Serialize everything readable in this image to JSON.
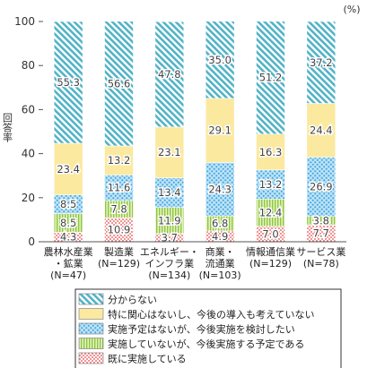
{
  "chart_data": {
    "type": "bar",
    "stacked": true,
    "unit": "(%)",
    "ylabel": "回答率",
    "ylim": [
      0,
      100
    ],
    "yticks": [
      0,
      20,
      40,
      60,
      80,
      100
    ],
    "categories": [
      [
        "農林水産業",
        "・鉱業",
        "(N=47)"
      ],
      [
        "製造業",
        "(N=129)"
      ],
      [
        "エネルギー・",
        "インフラ業",
        "(N=134)"
      ],
      [
        "商業・",
        "流通業",
        "(N=103)"
      ],
      [
        "情報通信業",
        "(N=129)"
      ],
      [
        "サービス業",
        "(N=78)"
      ]
    ],
    "series": [
      {
        "name": "既に実施している",
        "values": [
          4.3,
          10.9,
          3.7,
          4.9,
          7.0,
          7.7
        ],
        "labels": [
          "4.3",
          "10.9",
          "3.7",
          "4.9",
          "7.0",
          "7.7"
        ],
        "color": "#f08080",
        "pattern": "dots-red"
      },
      {
        "name": "実施していないが、今後実施する予定である",
        "values": [
          8.5,
          7.8,
          11.9,
          6.8,
          12.4,
          3.8
        ],
        "labels": [
          "8.5",
          "7.8",
          "11.9",
          "6.8",
          "12.4",
          "3.8"
        ],
        "color": "#a8d060",
        "pattern": "vlines-green"
      },
      {
        "name": "実施予定はないが、今後実施を検討したい",
        "values": [
          8.5,
          11.6,
          13.4,
          24.3,
          13.2,
          26.9
        ],
        "labels": [
          "8.5",
          "11.6",
          "13.4",
          "24.3",
          "13.2",
          "26.9"
        ],
        "color": "#7ec8ef",
        "pattern": "dots-blue"
      },
      {
        "name": "特に関心はないし、今後の導入も考えていない",
        "values": [
          23.4,
          13.2,
          23.1,
          29.1,
          16.3,
          24.4
        ],
        "labels": [
          "23.4",
          "13.2",
          "23.1",
          "29.1",
          "16.3",
          "24.4"
        ],
        "color": "#fbe9a0",
        "pattern": "solid-yellow"
      },
      {
        "name": "分からない",
        "values": [
          55.3,
          56.6,
          47.8,
          35.0,
          51.2,
          37.2
        ],
        "labels": [
          "55.3",
          "56.6",
          "47.8",
          "35.0",
          "51.2",
          "37.2"
        ],
        "color": "#5bb8c8",
        "pattern": "hatch-teal"
      }
    ],
    "legend_order": [
      "分からない",
      "特に関心はないし、今後の導入も考えていない",
      "実施予定はないが、今後実施を検討したい",
      "実施していないが、今後実施する予定である",
      "既に実施している"
    ],
    "legend_position": "bottom",
    "grid": false
  }
}
